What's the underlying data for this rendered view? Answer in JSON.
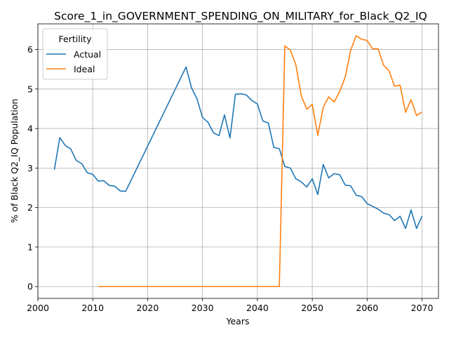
{
  "chart_data": {
    "type": "line",
    "title": "Score_1_in_GOVERNMENT_SPENDING_ON_MILITARY_for_Black_Q2_IQ",
    "xlabel": "Years",
    "ylabel": "% of Black Q2_IQ Population",
    "xlim": [
      2000,
      2073
    ],
    "ylim": [
      -0.3,
      6.65
    ],
    "xticks": [
      2000,
      2010,
      2020,
      2030,
      2040,
      2050,
      2060,
      2070
    ],
    "yticks": [
      0,
      1,
      2,
      3,
      4,
      5,
      6
    ],
    "grid": true,
    "legend": {
      "title": "Fertility",
      "placement": "top-left"
    },
    "series": [
      {
        "name": "Actual",
        "color": "#1f77b4",
        "x": [
          2003,
          2004,
          2005,
          2006,
          2007,
          2008,
          2009,
          2010,
          2011,
          2012,
          2013,
          2014,
          2015,
          2016,
          2027,
          2028,
          2029,
          2030,
          2031,
          2032,
          2033,
          2034,
          2035,
          2036,
          2037,
          2038,
          2039,
          2040,
          2041,
          2042,
          2043,
          2044,
          2045,
          2046,
          2047,
          2048,
          2049,
          2050,
          2051,
          2052,
          2053,
          2054,
          2055,
          2056,
          2057,
          2058,
          2059,
          2060,
          2061,
          2062,
          2063,
          2064,
          2065,
          2066,
          2067,
          2068,
          2069,
          2070
        ],
        "values": [
          2.96,
          3.77,
          3.57,
          3.48,
          3.19,
          3.11,
          2.88,
          2.84,
          2.67,
          2.68,
          2.56,
          2.54,
          2.42,
          2.41,
          5.56,
          5.03,
          4.75,
          4.28,
          4.16,
          3.89,
          3.82,
          4.35,
          3.76,
          4.87,
          4.88,
          4.85,
          4.71,
          4.62,
          4.19,
          4.14,
          3.52,
          3.49,
          3.04,
          3.0,
          2.73,
          2.65,
          2.52,
          2.73,
          2.33,
          3.09,
          2.75,
          2.86,
          2.83,
          2.57,
          2.55,
          2.31,
          2.28,
          2.1,
          2.03,
          1.96,
          1.86,
          1.82,
          1.67,
          1.78,
          1.47,
          1.94,
          1.47,
          1.78
        ]
      },
      {
        "name": "Ideal",
        "color": "#ff7f0e",
        "x": [
          2011,
          2044,
          2045,
          2046,
          2047,
          2048,
          2049,
          2050,
          2051,
          2052,
          2053,
          2054,
          2055,
          2056,
          2057,
          2058,
          2059,
          2060,
          2061,
          2062,
          2063,
          2064,
          2065,
          2066,
          2067,
          2068,
          2069,
          2070
        ],
        "values": [
          0.0,
          0.0,
          6.09,
          5.99,
          5.62,
          4.83,
          4.49,
          4.61,
          3.83,
          4.54,
          4.8,
          4.67,
          4.94,
          5.3,
          5.98,
          6.35,
          6.26,
          6.23,
          6.02,
          6.02,
          5.6,
          5.46,
          5.07,
          5.1,
          4.41,
          4.73,
          4.33,
          4.42
        ]
      }
    ]
  }
}
